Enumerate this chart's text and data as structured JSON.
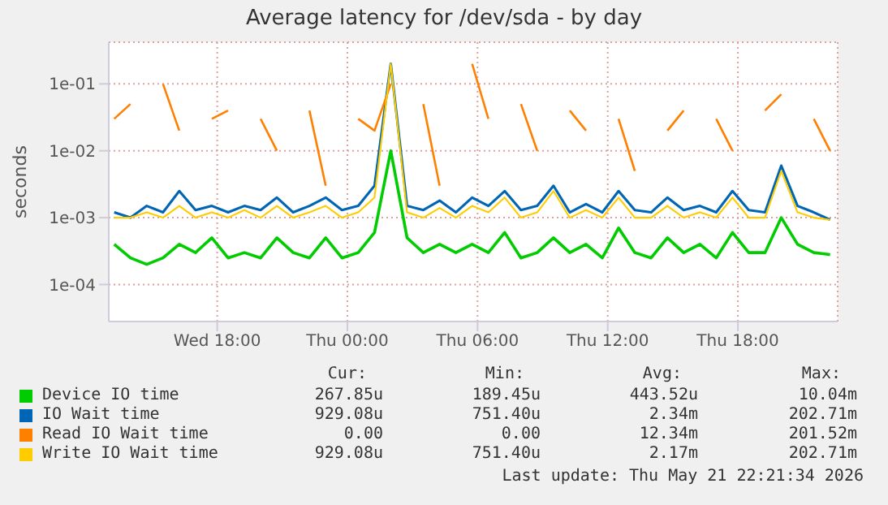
{
  "chart_data": {
    "type": "line",
    "title": "Average latency for /dev/sda - by day",
    "ylabel": "seconds",
    "log": "y",
    "grid": true,
    "legend": "bottom",
    "marker": "none",
    "line_style": "solid",
    "x": [
      "--05-20T13:15",
      "--05-20T14:00",
      "--05-20T14:45",
      "--05-20T15:30",
      "--05-20T16:15",
      "--05-20T17:00",
      "--05-20T17:45",
      "--05-20T18:30",
      "--05-20T19:15",
      "--05-20T20:00",
      "--05-20T20:45",
      "--05-20T21:30",
      "--05-20T22:15",
      "--05-20T23:00",
      "--05-20T23:45",
      "--05-21T00:30",
      "--05-21T01:15",
      "--05-21T02:00",
      "--05-21T02:45",
      "--05-21T03:30",
      "--05-21T04:15",
      "--05-21T05:00",
      "--05-21T05:45",
      "--05-21T06:30",
      "--05-21T07:15",
      "--05-21T08:00",
      "--05-21T08:45",
      "--05-21T09:30",
      "--05-21T10:15",
      "--05-21T11:00",
      "--05-21T11:45",
      "--05-21T12:30",
      "--05-21T13:15",
      "--05-21T14:00",
      "--05-21T14:45",
      "--05-21T15:30",
      "--05-21T16:15",
      "--05-21T17:00",
      "--05-21T17:45",
      "--05-21T18:30",
      "--05-21T19:15",
      "--05-21T20:00",
      "--05-21T20:45",
      "--05-21T21:30",
      "--05-21T22:15"
    ],
    "xlim": [
      "--05-20T13:00",
      "--05-21T22:36"
    ],
    "xticks": [
      {
        "value": "--05-20T18:00",
        "label": "Wed 18:00"
      },
      {
        "value": "--05-21T00:00",
        "label": "Thu 00:00"
      },
      {
        "value": "--05-21T06:00",
        "label": "Thu 06:00"
      },
      {
        "value": "--05-21T12:00",
        "label": "Thu 12:00"
      },
      {
        "value": "--05-21T18:00",
        "label": "Thu 18:00"
      }
    ],
    "ylim": [
      2.8e-05,
      0.42
    ],
    "yticks": [
      {
        "value": 0.0001,
        "label": "1e-04"
      },
      {
        "value": 0.001,
        "label": "1e-03"
      },
      {
        "value": 0.01,
        "label": "1e-02"
      },
      {
        "value": 0.1,
        "label": "1e-01"
      }
    ],
    "series": [
      {
        "name": "Device IO time",
        "color": "#00cc00",
        "values": [
          0.0004,
          0.00025,
          0.0002,
          0.00025,
          0.0004,
          0.0003,
          0.0005,
          0.00025,
          0.0003,
          0.00025,
          0.0005,
          0.0003,
          0.00025,
          0.0005,
          0.00025,
          0.0003,
          0.0006,
          0.01,
          0.0005,
          0.0003,
          0.0004,
          0.0003,
          0.0004,
          0.0003,
          0.0006,
          0.00025,
          0.0003,
          0.0005,
          0.0003,
          0.0004,
          0.00025,
          0.0007,
          0.0003,
          0.00025,
          0.0005,
          0.0003,
          0.0004,
          0.00025,
          0.0006,
          0.0003,
          0.0003,
          0.001,
          0.0004,
          0.0003,
          0.00028
        ]
      },
      {
        "name": "IO Wait time",
        "color": "#0066b3",
        "values": [
          0.0012,
          0.001,
          0.0015,
          0.0012,
          0.0025,
          0.0013,
          0.0015,
          0.0012,
          0.0015,
          0.0013,
          0.002,
          0.0012,
          0.0015,
          0.002,
          0.0013,
          0.0015,
          0.003,
          0.2,
          0.0015,
          0.0013,
          0.0018,
          0.0012,
          0.002,
          0.0015,
          0.0025,
          0.0013,
          0.0015,
          0.003,
          0.0012,
          0.0016,
          0.0012,
          0.0025,
          0.0013,
          0.0012,
          0.002,
          0.0013,
          0.0015,
          0.0012,
          0.0025,
          0.0013,
          0.0012,
          0.006,
          0.0015,
          0.0012,
          0.00093
        ]
      },
      {
        "name": "Read IO Wait time",
        "color": "#ff8000",
        "values": [
          0.03,
          0.05,
          null,
          0.1,
          0.02,
          null,
          0.03,
          0.04,
          null,
          0.03,
          0.01,
          null,
          0.04,
          0.003,
          null,
          0.03,
          0.02,
          0.1,
          null,
          0.05,
          0.003,
          null,
          0.2,
          0.03,
          null,
          0.05,
          0.01,
          null,
          0.04,
          0.02,
          null,
          0.03,
          0.005,
          null,
          0.02,
          0.04,
          null,
          0.03,
          0.01,
          null,
          0.04,
          0.07,
          null,
          0.03,
          0.01
        ]
      },
      {
        "name": "Write IO Wait time",
        "color": "#ffcc00",
        "values": [
          0.001,
          0.001,
          0.0012,
          0.001,
          0.0015,
          0.001,
          0.0012,
          0.001,
          0.0013,
          0.001,
          0.0015,
          0.001,
          0.0012,
          0.0015,
          0.001,
          0.0012,
          0.002,
          0.2,
          0.0012,
          0.001,
          0.0014,
          0.001,
          0.0015,
          0.0012,
          0.002,
          0.001,
          0.0012,
          0.0025,
          0.001,
          0.0013,
          0.001,
          0.002,
          0.001,
          0.001,
          0.0015,
          0.001,
          0.0012,
          0.001,
          0.002,
          0.001,
          0.001,
          0.005,
          0.0012,
          0.001,
          0.00093
        ]
      }
    ],
    "annotations": [
      "Cur:",
      "Min:",
      "Avg:",
      "Max:",
      "267.85u",
      "189.45u",
      "443.52u",
      "10.04m",
      "929.08u",
      "751.40u",
      "2.34m",
      "202.71m",
      "0.00",
      "0.00",
      "12.34m",
      "201.52m",
      "929.08u",
      "751.40u",
      "2.17m",
      "202.71m",
      "Last update: Thu May 21 22:21:34 2026"
    ]
  }
}
